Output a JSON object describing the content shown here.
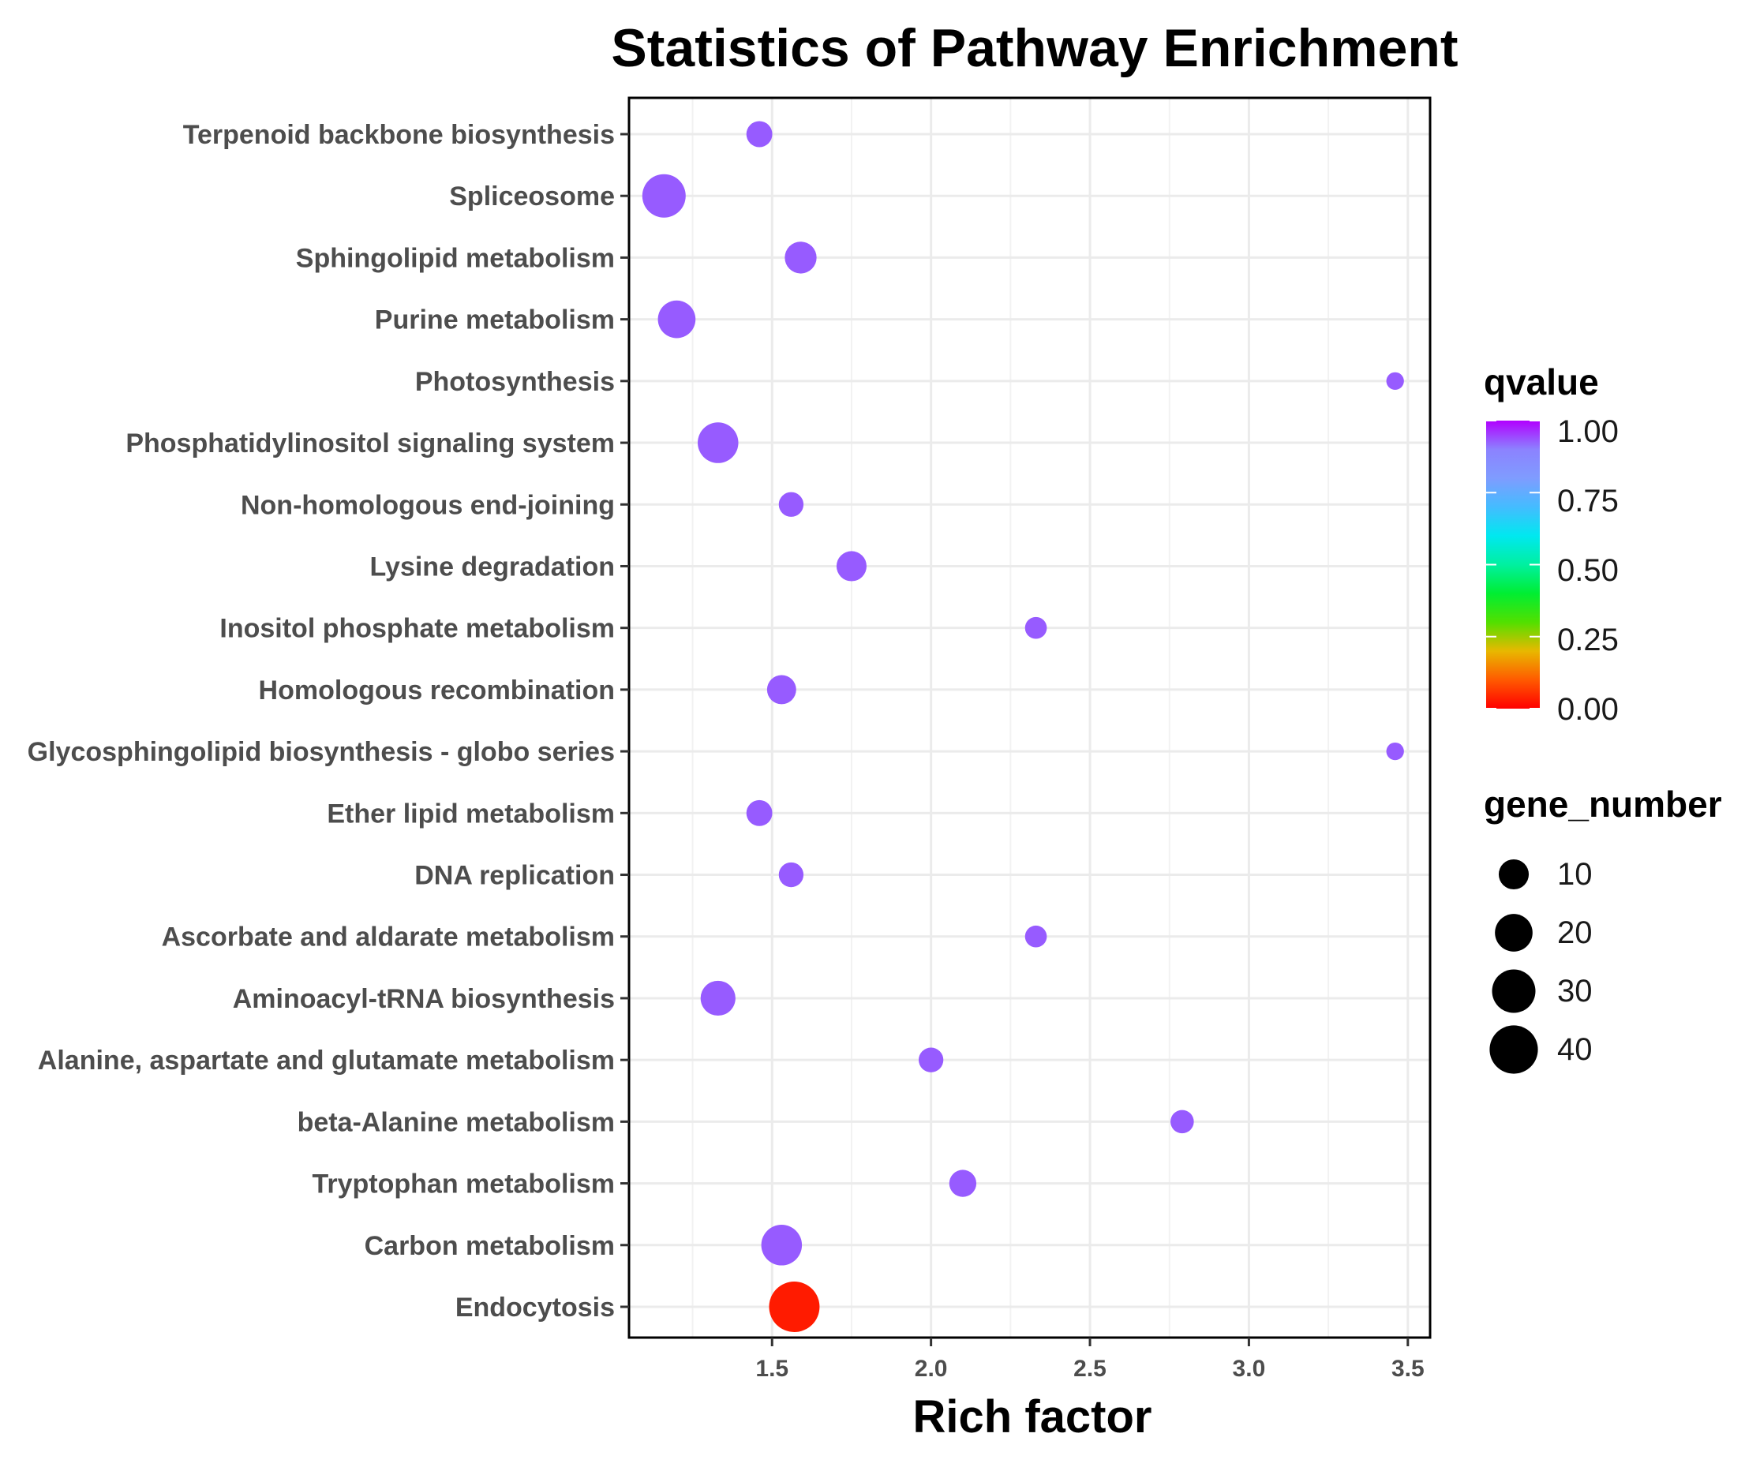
{
  "chart_data": {
    "type": "scatter",
    "title": "Statistics of Pathway Enrichment",
    "xlabel": "Rich factor",
    "ylabel": "",
    "xlim": [
      1.05,
      3.57
    ],
    "xticks": [
      1.5,
      2.0,
      2.5,
      3.0,
      3.5
    ],
    "xtick_labels": [
      "1.5",
      "2.0",
      "2.5",
      "3.0",
      "3.5"
    ],
    "grid": true,
    "categories": [
      "Terpenoid backbone biosynthesis",
      "Spliceosome",
      "Sphingolipid metabolism",
      "Purine metabolism",
      "Photosynthesis",
      "Phosphatidylinositol signaling system",
      "Non-homologous end-joining",
      "Lysine degradation",
      "Inositol phosphate metabolism",
      "Homologous recombination",
      "Glycosphingolipid biosynthesis - globo series",
      "Ether lipid metabolism",
      "DNA replication",
      "Ascorbate and aldarate metabolism",
      "Aminoacyl-tRNA biosynthesis",
      "Alanine, aspartate and glutamate metabolism",
      "beta-Alanine metabolism",
      "Tryptophan metabolism",
      "Carbon metabolism",
      "Endocytosis"
    ],
    "points": [
      {
        "pathway": "Terpenoid backbone biosynthesis",
        "rich_factor": 1.46,
        "gene_number": 6,
        "qvalue": 0.93
      },
      {
        "pathway": "Spliceosome",
        "rich_factor": 1.16,
        "gene_number": 30,
        "qvalue": 0.93
      },
      {
        "pathway": "Sphingolipid metabolism",
        "rich_factor": 1.59,
        "gene_number": 12,
        "qvalue": 0.93
      },
      {
        "pathway": "Purine metabolism",
        "rich_factor": 1.2,
        "gene_number": 20,
        "qvalue": 0.93
      },
      {
        "pathway": "Photosynthesis",
        "rich_factor": 3.46,
        "gene_number": 1,
        "qvalue": 0.93
      },
      {
        "pathway": "Phosphatidylinositol signaling system",
        "rich_factor": 1.33,
        "gene_number": 25,
        "qvalue": 0.93
      },
      {
        "pathway": "Non-homologous end-joining",
        "rich_factor": 1.56,
        "gene_number": 5,
        "qvalue": 0.93
      },
      {
        "pathway": "Lysine degradation",
        "rich_factor": 1.75,
        "gene_number": 10,
        "qvalue": 0.93
      },
      {
        "pathway": "Inositol phosphate metabolism",
        "rich_factor": 2.33,
        "gene_number": 3,
        "qvalue": 0.93
      },
      {
        "pathway": "Homologous recombination",
        "rich_factor": 1.53,
        "gene_number": 9,
        "qvalue": 0.93
      },
      {
        "pathway": "Glycosphingolipid biosynthesis - globo series",
        "rich_factor": 3.46,
        "gene_number": 1,
        "qvalue": 0.93
      },
      {
        "pathway": "Ether lipid metabolism",
        "rich_factor": 1.46,
        "gene_number": 6,
        "qvalue": 0.93
      },
      {
        "pathway": "DNA replication",
        "rich_factor": 1.56,
        "gene_number": 5,
        "qvalue": 0.93
      },
      {
        "pathway": "Ascorbate and aldarate metabolism",
        "rich_factor": 2.33,
        "gene_number": 3,
        "qvalue": 0.93
      },
      {
        "pathway": "Aminoacyl-tRNA biosynthesis",
        "rich_factor": 1.33,
        "gene_number": 16,
        "qvalue": 0.93
      },
      {
        "pathway": "Alanine, aspartate and glutamate metabolism",
        "rich_factor": 2.0,
        "gene_number": 5,
        "qvalue": 0.93
      },
      {
        "pathway": "beta-Alanine metabolism",
        "rich_factor": 2.79,
        "gene_number": 4,
        "qvalue": 0.93
      },
      {
        "pathway": "Tryptophan metabolism",
        "rich_factor": 2.1,
        "gene_number": 7,
        "qvalue": 0.93
      },
      {
        "pathway": "Carbon metabolism",
        "rich_factor": 1.53,
        "gene_number": 25,
        "qvalue": 0.93
      },
      {
        "pathway": "Endocytosis",
        "rich_factor": 1.57,
        "gene_number": 45,
        "qvalue": 0.03
      }
    ],
    "legend": {
      "position": "right",
      "color": {
        "title": "qvalue",
        "range": [
          0.0,
          1.0
        ],
        "labels": [
          "1.00",
          "0.75",
          "0.50",
          "0.25",
          "0.00"
        ],
        "label_values": [
          1.0,
          0.75,
          0.5,
          0.25,
          0.0
        ],
        "gradient_stops": [
          {
            "q": 0.0,
            "color": "#ff0000"
          },
          {
            "q": 0.1,
            "color": "#ff5a00"
          },
          {
            "q": 0.2,
            "color": "#e8b800"
          },
          {
            "q": 0.3,
            "color": "#52e000"
          },
          {
            "q": 0.4,
            "color": "#00ee32"
          },
          {
            "q": 0.5,
            "color": "#00f0a0"
          },
          {
            "q": 0.6,
            "color": "#00e8f0"
          },
          {
            "q": 0.7,
            "color": "#44bcff"
          },
          {
            "q": 0.8,
            "color": "#7f9cff"
          },
          {
            "q": 0.9,
            "color": "#8c82ff"
          },
          {
            "q": 1.0,
            "color": "#b200ff"
          }
        ]
      },
      "size": {
        "title": "gene_number",
        "labels": [
          "10",
          "20",
          "30",
          "40"
        ],
        "values": [
          10,
          20,
          30,
          40
        ],
        "color": "#000000"
      }
    }
  }
}
